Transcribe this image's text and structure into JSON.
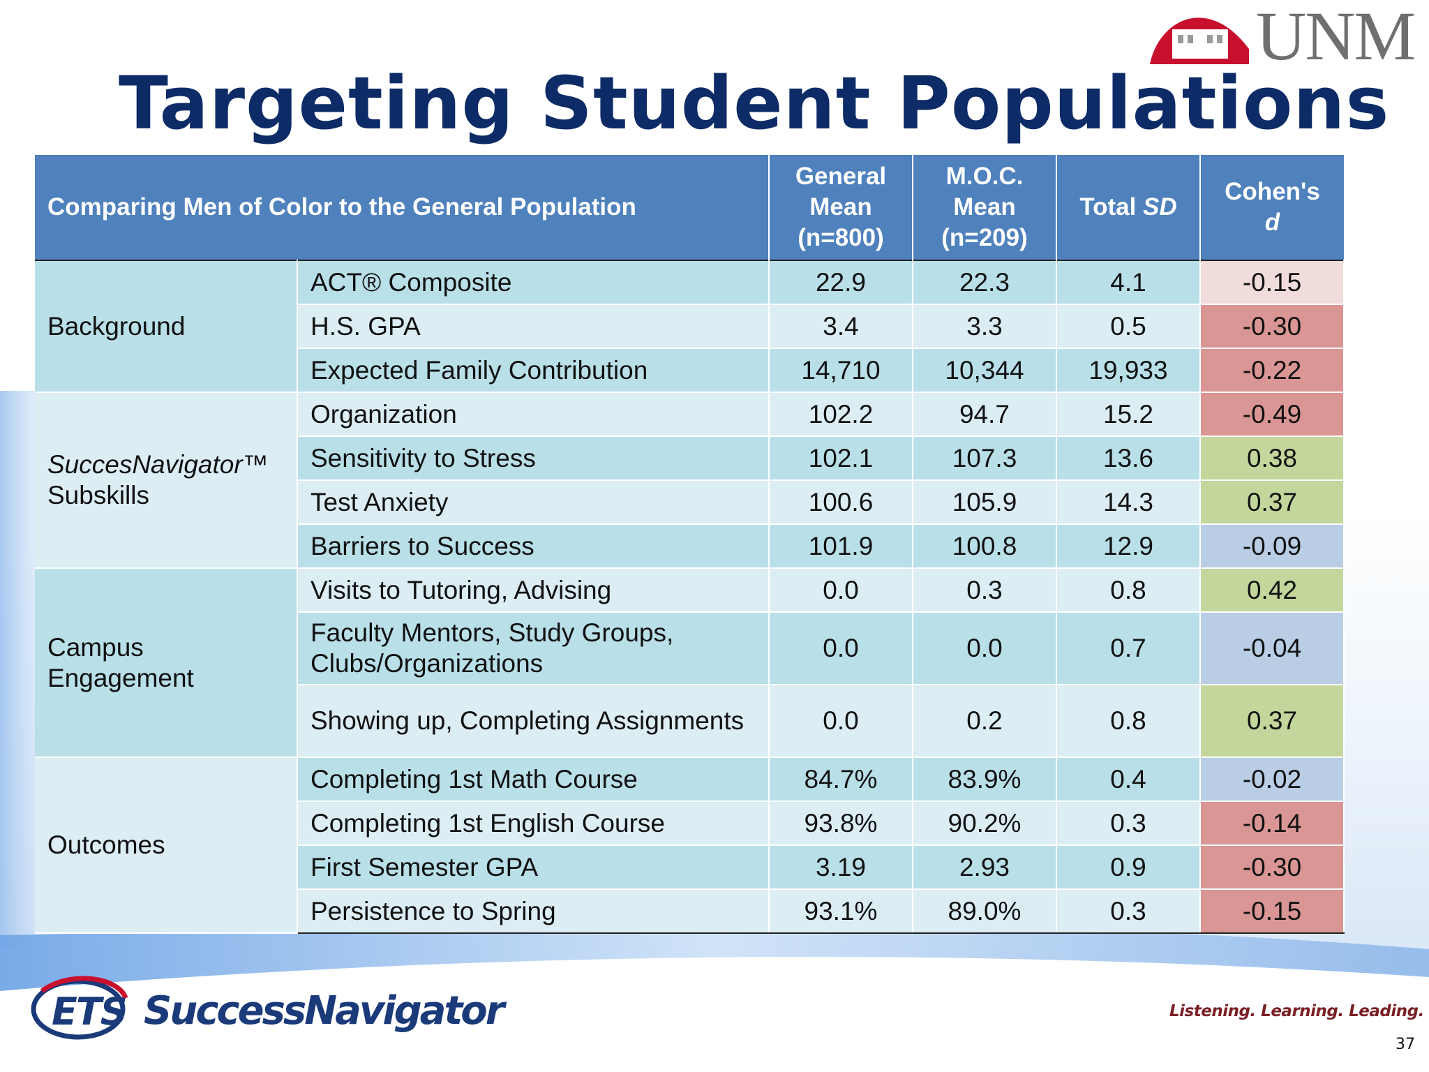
{
  "slide": {
    "title": "Targeting Student Populations",
    "page_number": "37"
  },
  "logos": {
    "unm_text": "UNM",
    "ets_text": "ETS",
    "successnavigator_text": "SuccessNavigator",
    "tagline": "Listening. Learning. Leading."
  },
  "colors": {
    "header_blue": "#4f81bd",
    "title_navy": "#0d2b66",
    "row_dark": "#b9dfe8",
    "row_light": "#dcedf3",
    "d_negative_strong": "#d99694",
    "d_negative_weak": "#f1dcdc",
    "d_positive": "#c3d69b",
    "d_neutral": "#b9cde5",
    "unm_red": "#c8102e"
  },
  "table": {
    "header": {
      "main": "Comparing Men of Color to the General Population",
      "general_mean_l1": "General",
      "general_mean_l2": "Mean",
      "general_mean_l3": "(n=800)",
      "moc_mean_l1": "M.O.C.",
      "moc_mean_l2": "Mean",
      "moc_mean_l3": "(n=209)",
      "total_sd_l1": "Total ",
      "total_sd_l2": "SD",
      "cohens_d_l1": "Cohen's",
      "cohens_d_l2": "d"
    },
    "groups": {
      "background": "Background",
      "successnavigator_l1": "SuccesNavigator™",
      "successnavigator_l2": "Subskills",
      "campus_engagement_l1": "Campus",
      "campus_engagement_l2": "Engagement",
      "outcomes": "Outcomes"
    },
    "rows": [
      {
        "label": "ACT® Composite",
        "general": "22.9",
        "moc": "22.3",
        "sd": "4.1",
        "d": "-0.15"
      },
      {
        "label": "H.S. GPA",
        "general": "3.4",
        "moc": "3.3",
        "sd": "0.5",
        "d": "-0.30"
      },
      {
        "label": "Expected Family Contribution",
        "general": "14,710",
        "moc": "10,344",
        "sd": "19,933",
        "d": "-0.22"
      },
      {
        "label": "Organization",
        "general": "102.2",
        "moc": "94.7",
        "sd": "15.2",
        "d": "-0.49"
      },
      {
        "label": "Sensitivity to Stress",
        "general": "102.1",
        "moc": "107.3",
        "sd": "13.6",
        "d": "0.38"
      },
      {
        "label": "Test Anxiety",
        "general": "100.6",
        "moc": "105.9",
        "sd": "14.3",
        "d": "0.37"
      },
      {
        "label": "Barriers to Success",
        "general": "101.9",
        "moc": "100.8",
        "sd": "12.9",
        "d": "-0.09"
      },
      {
        "label": "Visits to Tutoring, Advising",
        "general": "0.0",
        "moc": "0.3",
        "sd": "0.8",
        "d": "0.42"
      },
      {
        "label_l1": "Faculty Mentors, Study Groups,",
        "label_l2": "Clubs/Organizations",
        "general": "0.0",
        "moc": "0.0",
        "sd": "0.7",
        "d": "-0.04"
      },
      {
        "label": "Showing up, Completing Assignments",
        "general": "0.0",
        "moc": "0.2",
        "sd": "0.8",
        "d": "0.37"
      },
      {
        "label": "Completing 1st Math Course",
        "general": "84.7%",
        "moc": "83.9%",
        "sd": "0.4",
        "d": "-0.02"
      },
      {
        "label": "Completing 1st English Course",
        "general": "93.8%",
        "moc": "90.2%",
        "sd": "0.3",
        "d": "-0.14"
      },
      {
        "label": "First Semester GPA",
        "general": "3.19",
        "moc": "2.93",
        "sd": "0.9",
        "d": "-0.30"
      },
      {
        "label": "Persistence to Spring",
        "general": "93.1%",
        "moc": "89.0%",
        "sd": "0.3",
        "d": "-0.15"
      }
    ]
  }
}
